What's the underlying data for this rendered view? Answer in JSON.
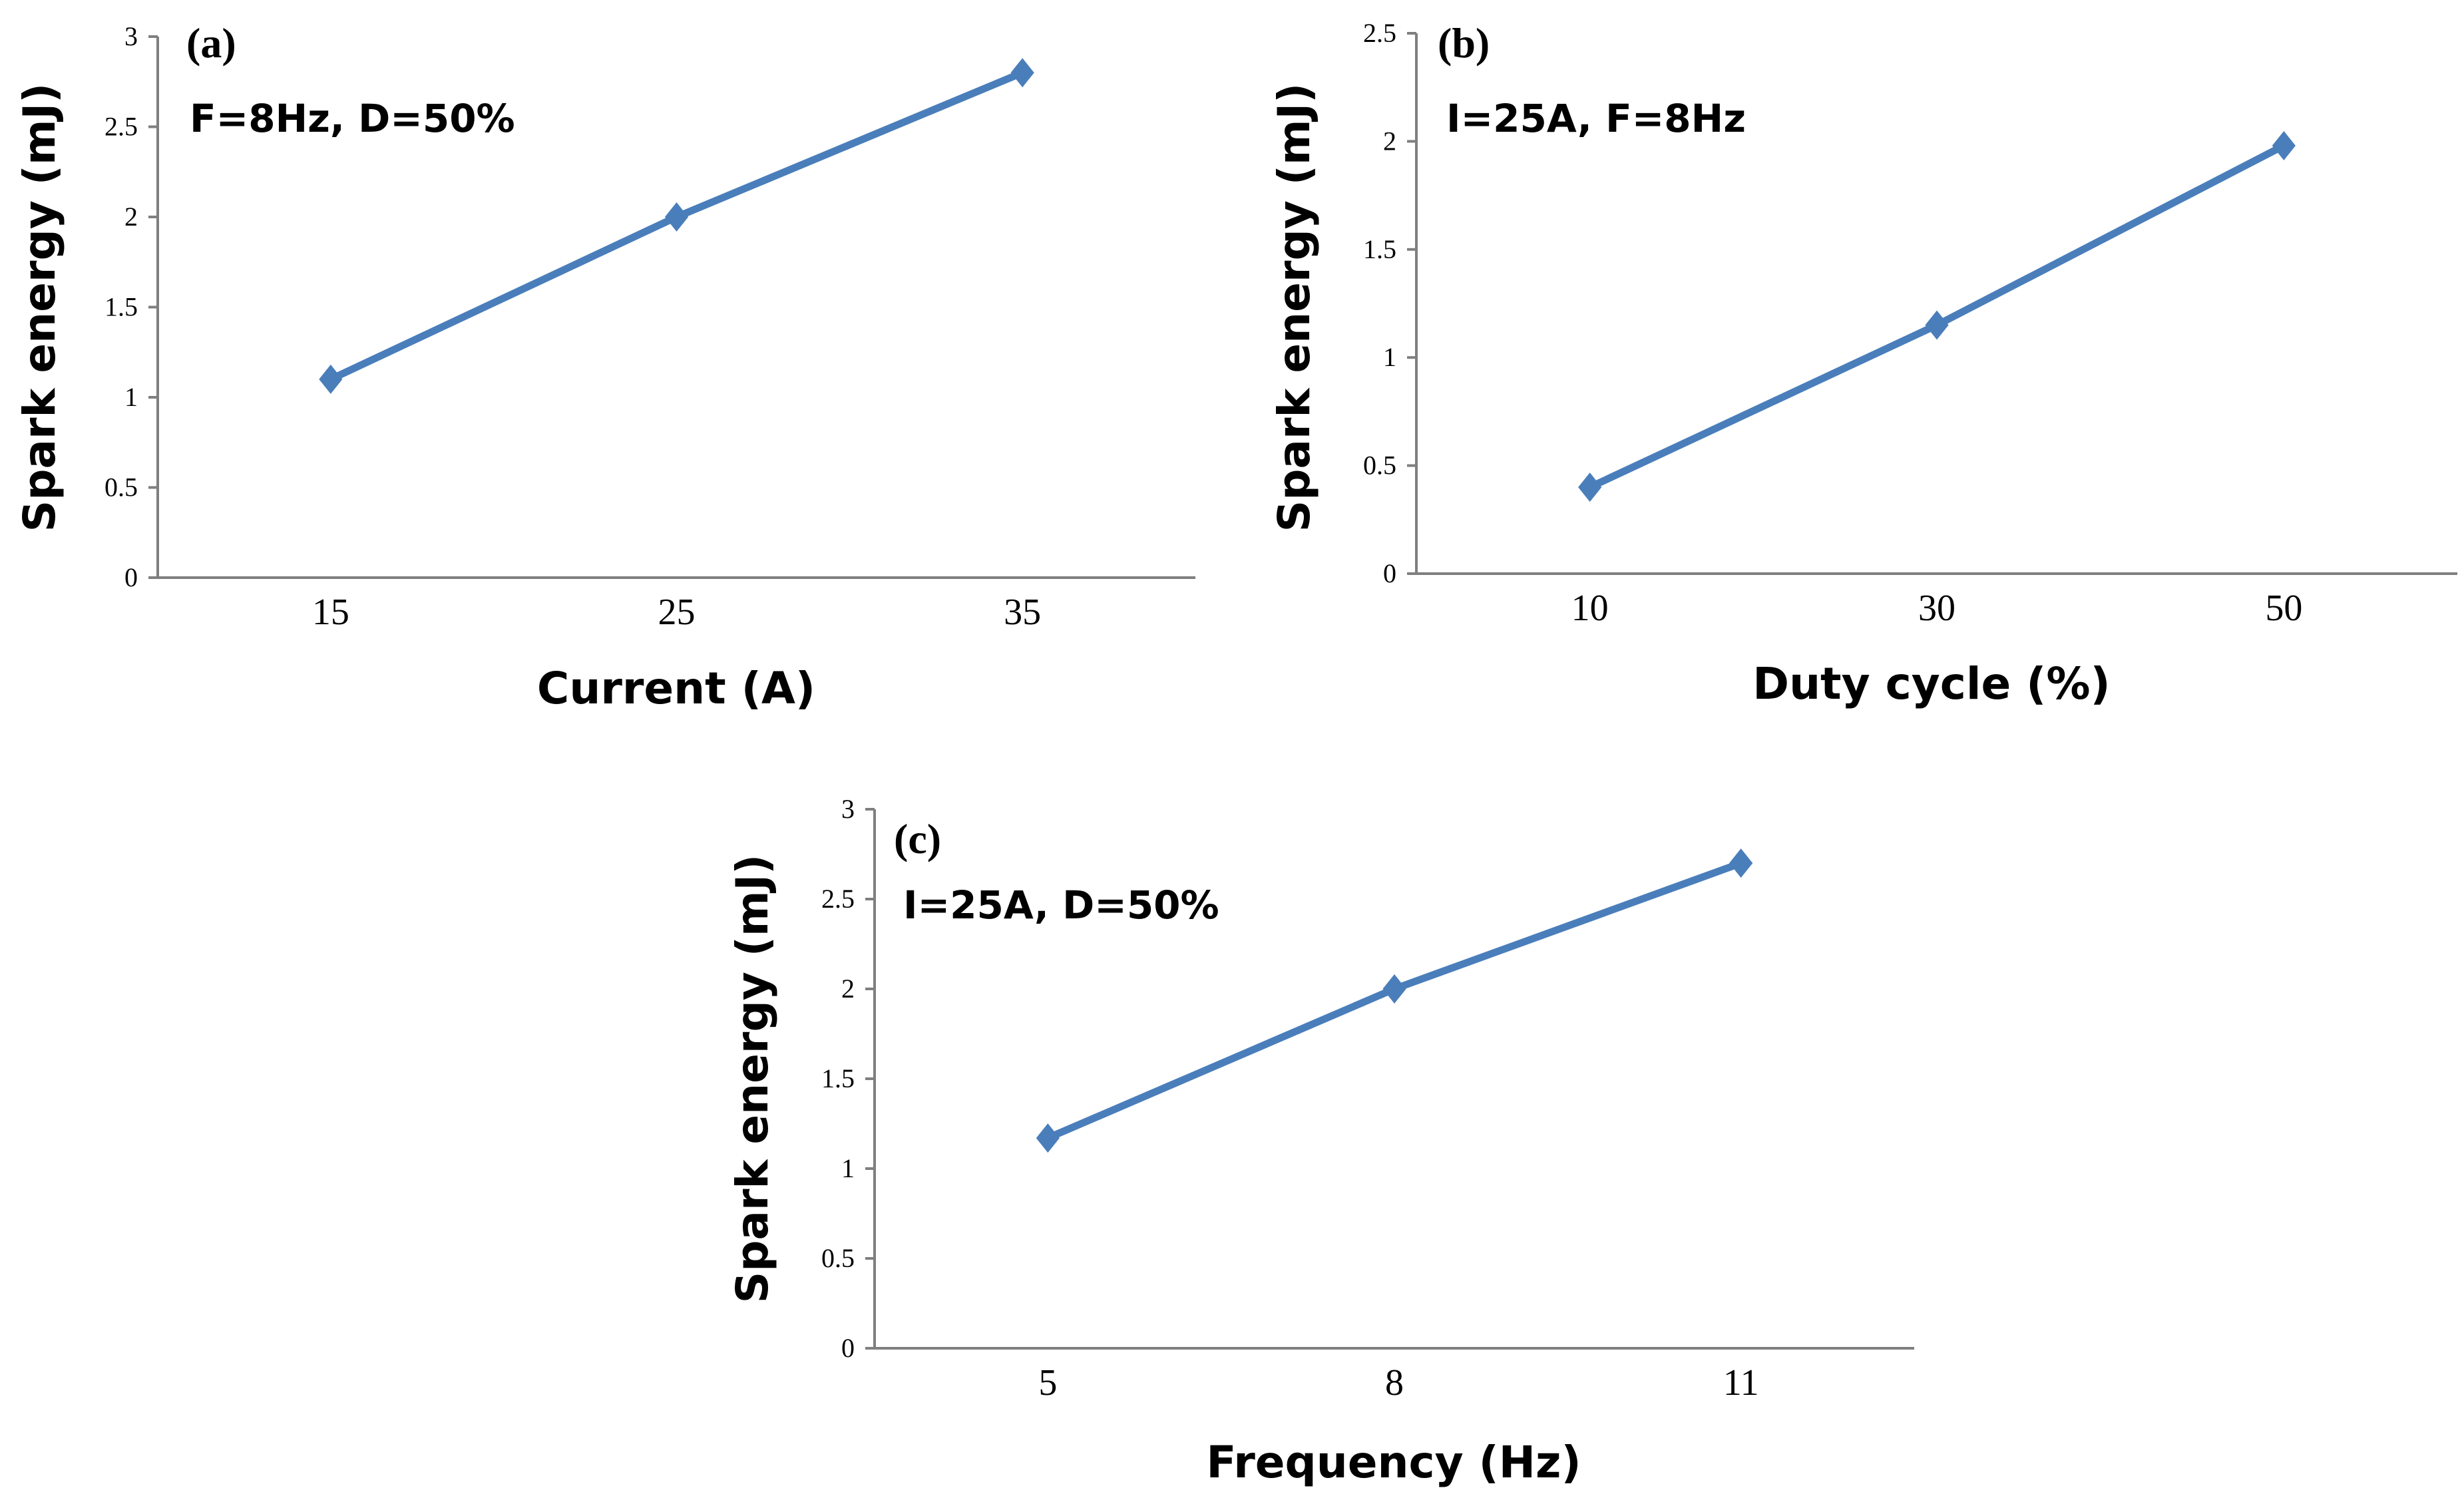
{
  "chart_data": [
    {
      "id": "a",
      "type": "line",
      "panel_label": "(a)",
      "annotation": "F=8Hz, D=50%",
      "title": "",
      "xlabel": "Current (A)",
      "ylabel": "Spark energy (mJ)",
      "categories": [
        "15",
        "25",
        "35"
      ],
      "series": [
        {
          "name": "Spark energy",
          "values": [
            1.1,
            2.0,
            2.8
          ]
        }
      ],
      "ylim": [
        0,
        3
      ],
      "yticks": [
        0,
        0.5,
        1,
        1.5,
        2,
        2.5,
        3
      ],
      "ytick_labels": [
        "0",
        "0.5",
        "1",
        "1.5",
        "2",
        "2.5",
        "3"
      ],
      "grid": false,
      "series_color": "#4a7ebb"
    },
    {
      "id": "b",
      "type": "line",
      "panel_label": "(b)",
      "annotation": "I=25A, F=8Hz",
      "title": "",
      "xlabel": "Duty cycle (%)",
      "ylabel": "Spark energy (mJ)",
      "categories": [
        "10",
        "30",
        "50"
      ],
      "series": [
        {
          "name": "Spark energy",
          "values": [
            0.4,
            1.15,
            1.98
          ]
        }
      ],
      "ylim": [
        0,
        2.5
      ],
      "yticks": [
        0,
        0.5,
        1,
        1.5,
        2,
        2.5
      ],
      "ytick_labels": [
        "0",
        "0.5",
        "1",
        "1.5",
        "2",
        "2.5"
      ],
      "grid": false,
      "series_color": "#4a7ebb"
    },
    {
      "id": "c",
      "type": "line",
      "panel_label": "(c)",
      "annotation": "I=25A, D=50%",
      "title": "",
      "xlabel": "Frequency (Hz)",
      "ylabel": "Spark energy (mJ)",
      "categories": [
        "5",
        "8",
        "11"
      ],
      "series": [
        {
          "name": "Spark energy",
          "values": [
            1.17,
            2.0,
            2.7
          ]
        }
      ],
      "ylim": [
        0,
        3
      ],
      "yticks": [
        0,
        0.5,
        1,
        1.5,
        2,
        2.5,
        3
      ],
      "ytick_labels": [
        "0",
        "0.5",
        "1",
        "1.5",
        "2",
        "2.5",
        "3"
      ],
      "grid": false,
      "series_color": "#4a7ebb"
    }
  ]
}
